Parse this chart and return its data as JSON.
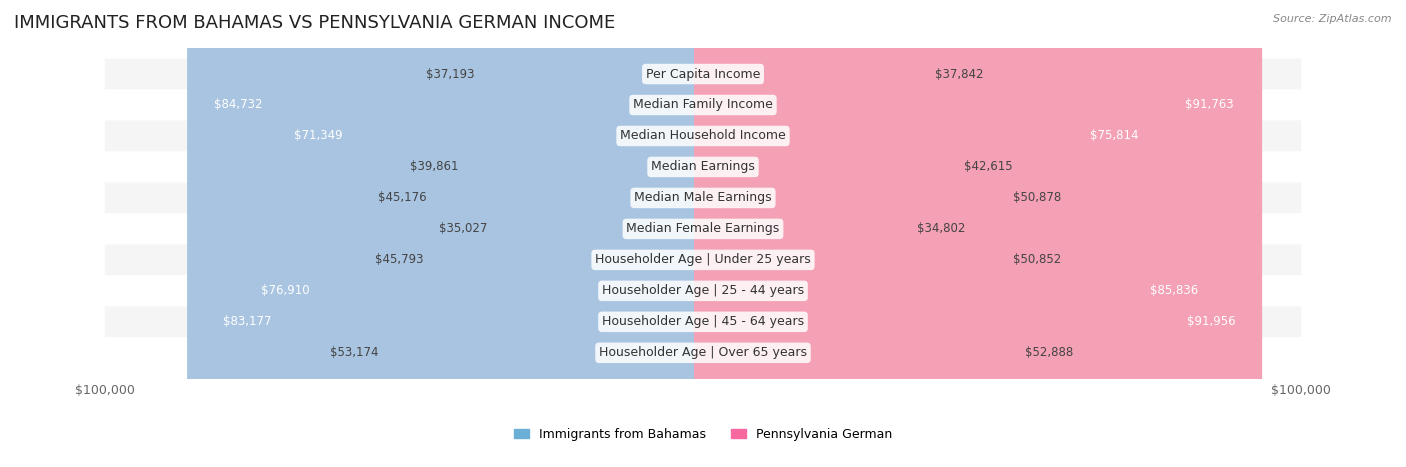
{
  "title": "IMMIGRANTS FROM BAHAMAS VS PENNSYLVANIA GERMAN INCOME",
  "source": "Source: ZipAtlas.com",
  "categories": [
    "Per Capita Income",
    "Median Family Income",
    "Median Household Income",
    "Median Earnings",
    "Median Male Earnings",
    "Median Female Earnings",
    "Householder Age | Under 25 years",
    "Householder Age | 25 - 44 years",
    "Householder Age | 45 - 64 years",
    "Householder Age | Over 65 years"
  ],
  "left_values": [
    37193,
    84732,
    71349,
    39861,
    45176,
    35027,
    45793,
    76910,
    83177,
    53174
  ],
  "right_values": [
    37842,
    91763,
    75814,
    42615,
    50878,
    34802,
    50852,
    85836,
    91956,
    52888
  ],
  "left_color": "#a8c4e0",
  "right_color": "#f4a0b5",
  "left_label": "Immigrants from Bahamas",
  "right_label": "Pennsylvania German",
  "left_label_color": "#6baed6",
  "right_label_color": "#f768a1",
  "max_value": 100000,
  "bg_color": "#ffffff",
  "row_bg_even": "#f5f5f5",
  "row_bg_odd": "#ffffff",
  "title_fontsize": 13,
  "label_fontsize": 9,
  "value_fontsize": 8.5
}
